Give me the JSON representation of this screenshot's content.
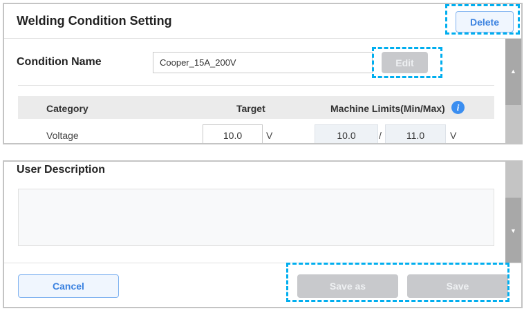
{
  "header": {
    "title": "Welding Condition Setting",
    "delete_label": "Delete"
  },
  "condition": {
    "label": "Condition Name",
    "value": "Cooper_15A_200V",
    "edit_label": "Edit"
  },
  "table": {
    "headers": [
      "Category",
      "Target",
      "Machine Limits(Min/Max)"
    ],
    "info_icon": "info-icon",
    "rows": [
      {
        "category": "Voltage",
        "target": "10.0",
        "target_unit": "V",
        "min": "10.0",
        "separator": "/",
        "max": "11.0",
        "limit_unit": "V"
      }
    ]
  },
  "description": {
    "label": "User Description",
    "value": ""
  },
  "footer": {
    "cancel_label": "Cancel",
    "save_as_label": "Save as",
    "save_label": "Save"
  },
  "scrollbar": {
    "up_arrow": "▲",
    "down_arrow": "▼"
  },
  "colors": {
    "accent": "#3b82e0",
    "highlight": "#00aeef",
    "disabled": "#c8c9cc"
  }
}
